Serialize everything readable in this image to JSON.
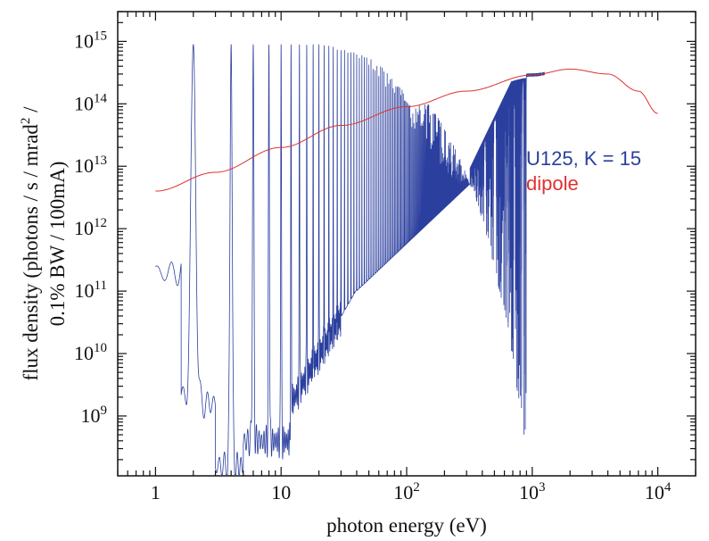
{
  "chart_data": {
    "type": "line",
    "x_scale": "log",
    "y_scale": "log",
    "xlim": [
      0.5,
      20000
    ],
    "ylim": [
      110000000.0,
      3000000000000000.0
    ],
    "xlabel": "photon energy (eV)",
    "ylabel_line1": "flux density (photons / s / mrad",
    "ylabel_sup": "2",
    "ylabel_line1_end": " /",
    "ylabel_line2": "0.1% BW / 100mA)",
    "x_ticks": [
      {
        "base": "1",
        "exp": ""
      },
      {
        "base": "10",
        "exp": ""
      },
      {
        "base": "10",
        "exp": "2"
      },
      {
        "base": "10",
        "exp": "3"
      },
      {
        "base": "10",
        "exp": "4"
      }
    ],
    "x_tick_values": [
      1,
      10,
      100,
      1000,
      10000
    ],
    "y_ticks": [
      {
        "base": "10",
        "exp": "9"
      },
      {
        "base": "10",
        "exp": "10"
      },
      {
        "base": "10",
        "exp": "11"
      },
      {
        "base": "10",
        "exp": "12"
      },
      {
        "base": "10",
        "exp": "13"
      },
      {
        "base": "10",
        "exp": "14"
      },
      {
        "base": "10",
        "exp": "15"
      }
    ],
    "y_tick_values": [
      1000000000.0,
      10000000000.0,
      100000000000.0,
      1000000000000.0,
      10000000000000.0,
      100000000000000.0,
      1000000000000000.0
    ],
    "series": [
      {
        "name": "U125, K = 15",
        "color": "#2b3f9e",
        "style": "undulator harmonics",
        "fundamental_eV": 2.0,
        "harmonic_count": 60,
        "x_range": [
          1,
          1250
        ],
        "peak_flux_range": [
          8000000000000.0,
          900000000000000.0
        ],
        "values": [
          [
            1,
            200000000000.0
          ],
          [
            1.3,
            800000000000.0
          ],
          [
            1.55,
            1000000000000.0
          ],
          [
            2,
            400000000000000.0
          ],
          [
            3.5,
            130000000.0
          ],
          [
            6,
            800000000000000.0
          ],
          [
            7.5,
            120000000.0
          ],
          [
            14,
            900000000000000.0
          ],
          [
            50,
            900000000000000.0
          ],
          [
            320,
            9000000000000.0
          ],
          [
            1000,
            300000000000000.0
          ],
          [
            1250,
            320000000000000.0
          ]
        ]
      },
      {
        "name": "dipole",
        "color": "#e03030",
        "values": [
          [
            1,
            4000000000000.0
          ],
          [
            3,
            8000000000000.0
          ],
          [
            10,
            20000000000000.0
          ],
          [
            30,
            45000000000000.0
          ],
          [
            100,
            90000000000000.0
          ],
          [
            300,
            160000000000000.0
          ],
          [
            1000,
            290000000000000.0
          ],
          [
            2000,
            360000000000000.0
          ],
          [
            4000,
            300000000000000.0
          ],
          [
            7000,
            160000000000000.0
          ],
          [
            10000,
            70000000000000.0
          ]
        ]
      }
    ]
  }
}
